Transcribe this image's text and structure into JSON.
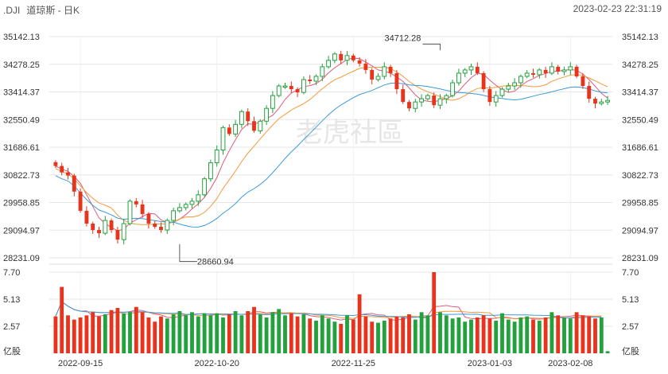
{
  "header": {
    "symbol": ".DJI",
    "name": "道琼斯 - 日K",
    "timestamp": "2023-02-23 22:31:19"
  },
  "watermark": "老虎社區",
  "colors": {
    "up": "#e8341c",
    "down": "#22a13c",
    "ma1": "#e05a7a",
    "ma2": "#f39a3c",
    "ma3": "#3b9ad9",
    "grid": "#e6e6e6"
  },
  "chart_data": [
    {
      "type": "candlestick",
      "y_ticks": [
        "35142.13",
        "34278.25",
        "33414.37",
        "32550.49",
        "31686.61",
        "30822.73",
        "29958.85",
        "29094.97",
        "28231.09"
      ],
      "ylim": [
        28231.09,
        35142.13
      ],
      "x_ticks": [
        "2022-09-15",
        "2022-10-20",
        "2022-11-25",
        "2023-01-03",
        "2023-02-08"
      ],
      "annotations": [
        {
          "text": "34712.28",
          "value": 34712.28,
          "index": 62
        },
        {
          "text": "28660.94",
          "value": 28660.94,
          "index": 20
        }
      ],
      "close": [
        31100,
        30900,
        30800,
        30300,
        29700,
        29300,
        29100,
        29000,
        29400,
        29100,
        28800,
        29300,
        30000,
        29900,
        29600,
        29300,
        29200,
        29100,
        29400,
        29700,
        29800,
        29900,
        30000,
        30200,
        30700,
        31200,
        31600,
        32300,
        32100,
        32400,
        32800,
        32500,
        32200,
        32500,
        32900,
        33300,
        33600,
        33600,
        33500,
        33400,
        33800,
        33750,
        33900,
        34200,
        34400,
        34600,
        34400,
        34550,
        34400,
        34300,
        34100,
        33800,
        33900,
        34200,
        34000,
        33500,
        33100,
        32900,
        33100,
        33200,
        33300,
        33000,
        33200,
        33300,
        33700,
        34000,
        34100,
        34200,
        34000,
        33500,
        33100,
        33300,
        33500,
        33600,
        33700,
        33900,
        34000,
        33950,
        34100,
        34000,
        34200,
        34050,
        34100,
        34200,
        33900,
        33600,
        33200,
        33050,
        33100,
        33150
      ],
      "volume": [
        3.5,
        6.3,
        3.6,
        3.2,
        3.4,
        3.6,
        3.9,
        3.5,
        3.7,
        4.1,
        4.3,
        3.8,
        3.9,
        4.4,
        3.9,
        3.4,
        3.0,
        3.5,
        3.3,
        3.7,
        4.0,
        3.6,
        3.9,
        3.5,
        3.8,
        3.6,
        3.8,
        3.4,
        3.7,
        4.0,
        3.6,
        4.0,
        4.4,
        3.7,
        3.4,
        3.9,
        4.2,
        3.6,
        3.8,
        3.5,
        3.7,
        3.3,
        3.1,
        3.6,
        3.3,
        3.0,
        2.8,
        3.6,
        3.2,
        5.6,
        3.5,
        3.0,
        2.9,
        3.1,
        3.3,
        3.5,
        3.4,
        3.7,
        3.2,
        3.9,
        3.6,
        7.7,
        3.9,
        3.6,
        3.3,
        3.4,
        3.0,
        3.2,
        3.4,
        3.6,
        3.3,
        3.1,
        3.8,
        3.2,
        3.0,
        3.4,
        3.5,
        3.2,
        3.1,
        3.4,
        3.9,
        3.6,
        3.4,
        3.3,
        3.9,
        3.6,
        3.5,
        3.3,
        3.4,
        0.2
      ]
    },
    {
      "type": "bar",
      "title": "",
      "y_ticks": [
        "7.70",
        "5.13",
        "2.57"
      ],
      "unit": "亿股",
      "ylim": [
        0,
        7.7
      ]
    }
  ]
}
